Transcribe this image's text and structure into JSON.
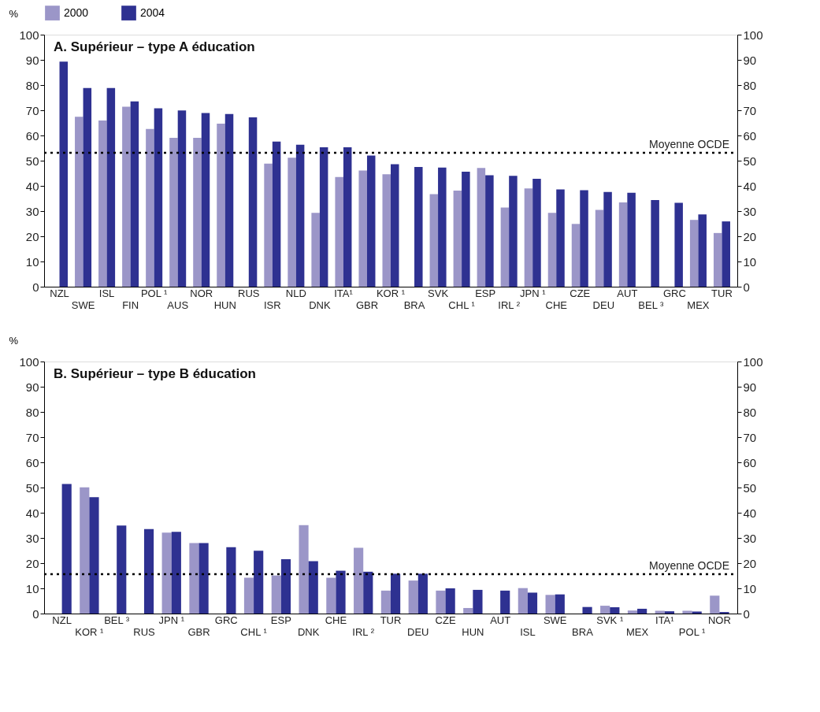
{
  "chart_data": [
    {
      "type": "bar",
      "title": "A. Supérieur – type A éducation",
      "ylabel": "%",
      "legend": "top",
      "categories": [
        "NZL",
        "SWE",
        "ISL",
        "FIN",
        "POL ¹",
        "AUS",
        "NOR",
        "HUN",
        "RUS",
        "ISR",
        "NLD",
        "DNK",
        "ITA¹",
        "GBR",
        "KOR ¹",
        "BRA",
        "SVK",
        "CHL ¹",
        "ESP",
        "IRL ²",
        "JPN ¹",
        "CHE",
        "CZE",
        "DEU",
        "AUT",
        "BEL ³",
        "GRC",
        "MEX",
        "TUR"
      ],
      "series": [
        {
          "name": "2000",
          "color": "#9b96c8",
          "values": [
            null,
            67.4,
            65.9,
            71.4,
            62.6,
            59.1,
            59.1,
            64.7,
            null,
            48.8,
            51.2,
            29.3,
            43.5,
            46.1,
            44.6,
            null,
            36.7,
            38.1,
            47.1,
            31.4,
            39.0,
            29.3,
            24.9,
            30.5,
            33.4,
            null,
            null,
            26.5,
            21.3
          ]
        },
        {
          "name": "2004",
          "color": "#2e3191",
          "values": [
            89.3,
            78.8,
            78.8,
            73.5,
            70.8,
            69.9,
            68.9,
            68.5,
            67.2,
            57.6,
            56.3,
            55.3,
            55.3,
            52.0,
            48.6,
            47.5,
            47.3,
            45.6,
            44.2,
            44.0,
            42.8,
            38.6,
            38.3,
            37.6,
            37.3,
            34.4,
            33.3,
            28.7,
            25.9
          ]
        }
      ],
      "ylim": [
        0,
        100
      ],
      "yticks": [
        0,
        10,
        20,
        30,
        40,
        50,
        60,
        70,
        80,
        90,
        100
      ],
      "y2lim": [
        0,
        100
      ],
      "y2ticks": [
        0,
        10,
        20,
        30,
        40,
        50,
        60,
        70,
        80,
        90,
        100
      ],
      "ref_lines": [
        {
          "axis": "y",
          "value": 53.1,
          "label": "Moyenne OCDE",
          "color": "#000000",
          "line_style": "dotted"
        }
      ]
    },
    {
      "type": "bar",
      "title": "B. Supérieur – type B éducation",
      "ylabel": "%",
      "legend": false,
      "categories": [
        "NZL",
        "KOR ¹",
        "BEL ³",
        "RUS",
        "JPN ¹",
        "GBR",
        "GRC",
        "CHL ¹",
        "ESP",
        "DNK",
        "CHE",
        "IRL ²",
        "TUR",
        "DEU",
        "CZE",
        "HUN",
        "AUT",
        "ISL",
        "SWE",
        "BRA",
        "SVK ¹",
        "MEX",
        "ITA¹",
        "POL ¹",
        "NOR"
      ],
      "series": [
        {
          "name": "2000",
          "color": "#9b96c8",
          "values": [
            null,
            50.1,
            null,
            null,
            32.1,
            28.0,
            null,
            14.2,
            15.1,
            35.1,
            14.2,
            26.1,
            9.1,
            13.1,
            9.1,
            2.2,
            null,
            10.1,
            7.4,
            null,
            3.1,
            1.2,
            1.1,
            1.1,
            7.1
          ]
        },
        {
          "name": "2004",
          "color": "#2e3191",
          "values": [
            51.4,
            46.2,
            34.9,
            33.5,
            32.4,
            28.0,
            26.3,
            24.9,
            21.6,
            20.8,
            17.0,
            16.6,
            15.8,
            15.8,
            10.0,
            9.4,
            9.1,
            8.3,
            7.6,
            2.6,
            2.5,
            1.9,
            0.9,
            0.8,
            0.6
          ]
        }
      ],
      "ylim": [
        0,
        100
      ],
      "yticks": [
        0,
        10,
        20,
        30,
        40,
        50,
        60,
        70,
        80,
        90,
        100
      ],
      "y2lim": [
        0,
        100
      ],
      "y2ticks": [
        0,
        10,
        20,
        30,
        40,
        50,
        60,
        70,
        80,
        90,
        100
      ],
      "ref_lines": [
        {
          "axis": "y",
          "value": 15.6,
          "label": "Moyenne OCDE",
          "color": "#000000",
          "line_style": "dotted"
        }
      ]
    }
  ]
}
